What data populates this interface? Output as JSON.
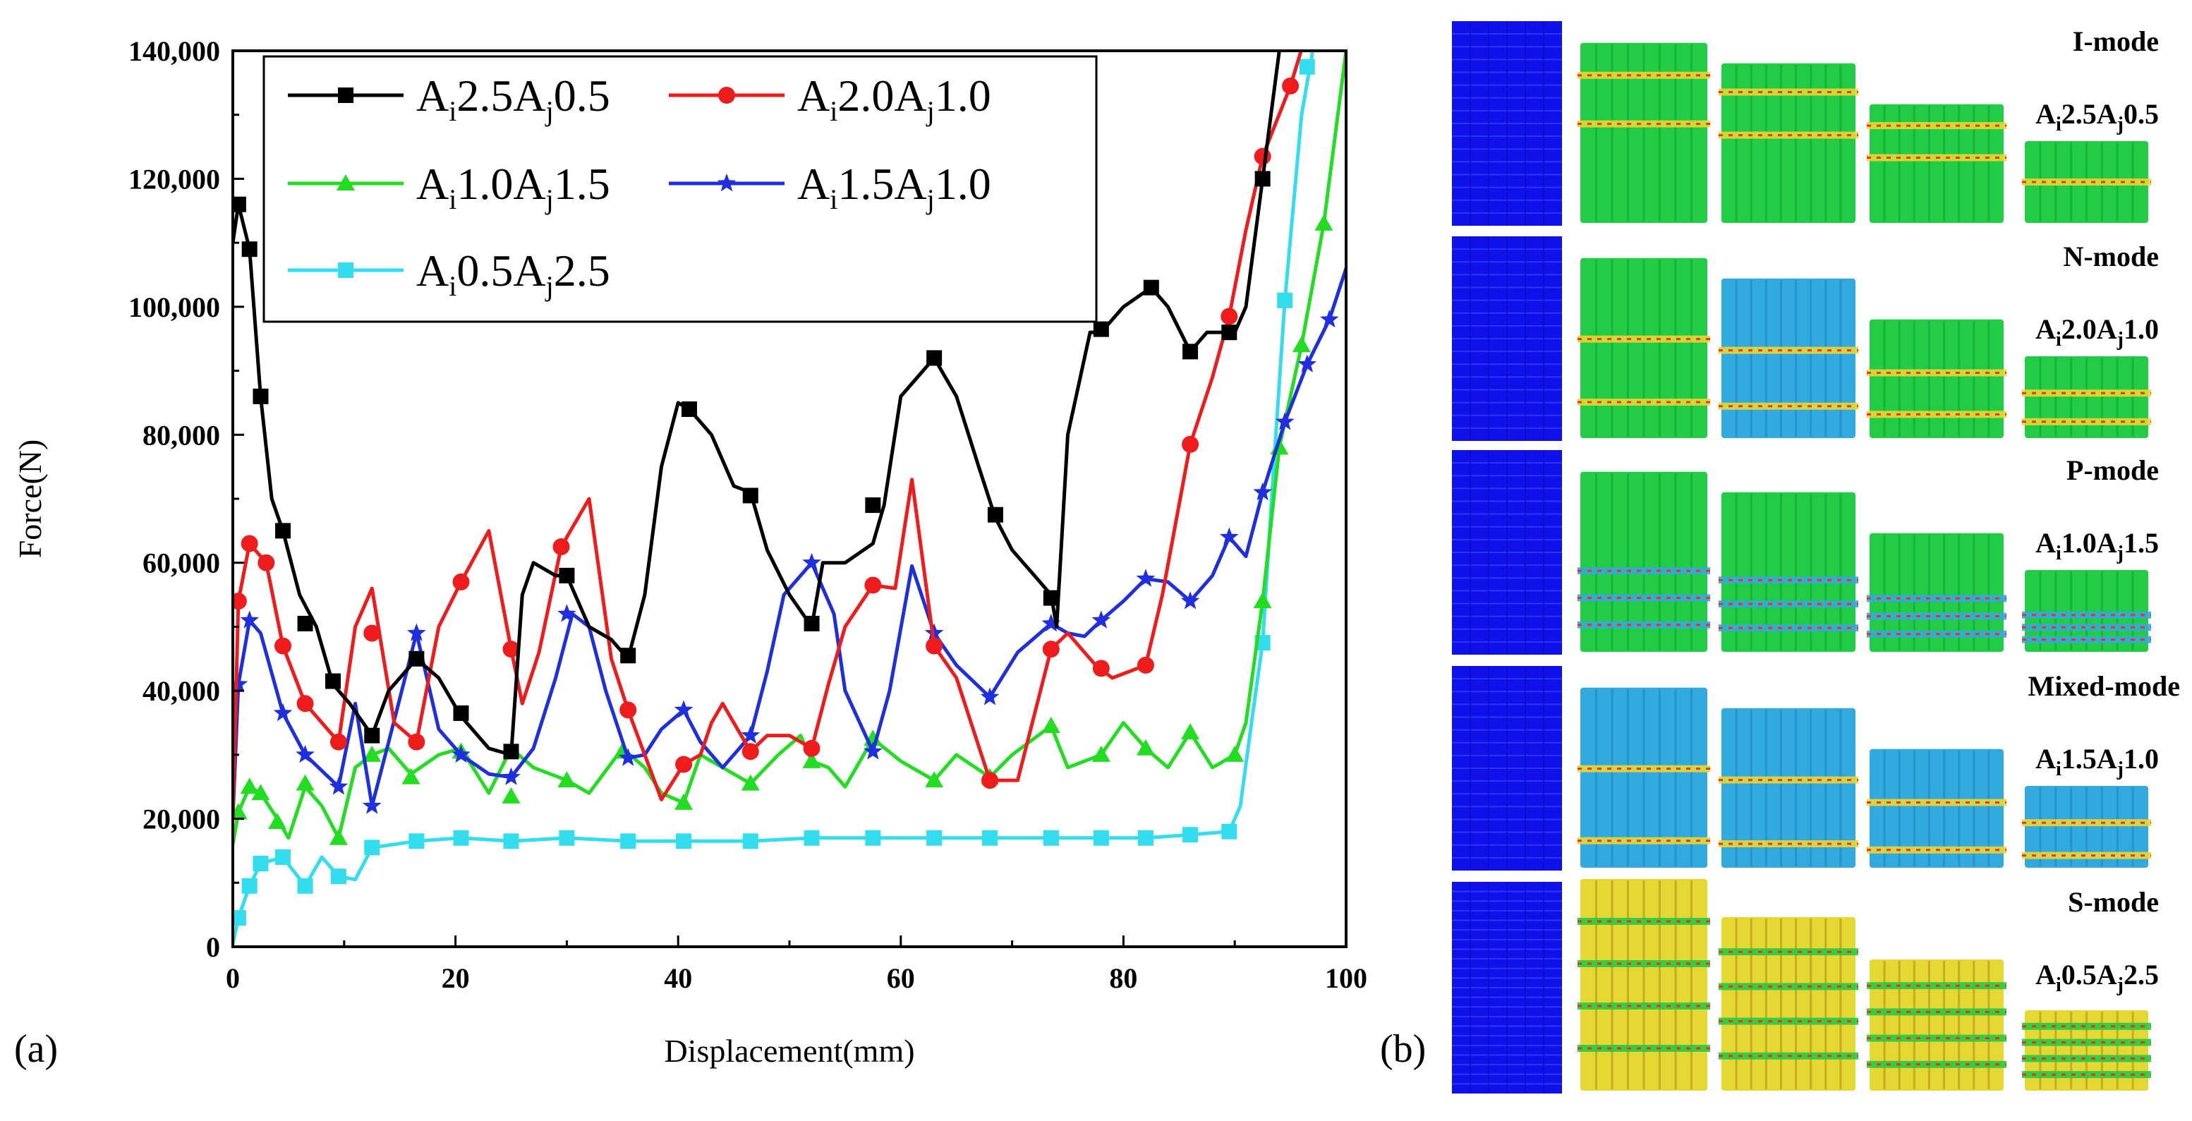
{
  "panel_a_label": "(a)",
  "panel_b_label": "(b)",
  "chart_data": {
    "type": "line",
    "xlabel": "Displacement(mm)",
    "ylabel": "Force(N)",
    "xlim": [
      0,
      100
    ],
    "ylim": [
      0,
      140000
    ],
    "x_ticks": [
      "0",
      "20",
      "40",
      "60",
      "80",
      "100"
    ],
    "y_ticks": [
      "0",
      "20,000",
      "40,000",
      "60,000",
      "80,000",
      "100,000",
      "120,000",
      "140,000"
    ],
    "grid": false,
    "legend_position": "top-left",
    "series": [
      {
        "name": "Ai2.5Aj0.5",
        "name_main": "A",
        "name_sub1": "i",
        "name_mid": "2.5A",
        "name_sub2": "j",
        "name_end": "0.5",
        "color": "#000000",
        "marker": "square",
        "x": [
          0,
          0.5,
          1.5,
          2.5,
          3.5,
          4.5,
          6,
          7.5,
          9,
          10.5,
          12.5,
          14,
          16.5,
          18.5,
          20.5,
          23,
          25,
          26,
          27,
          29,
          30,
          32,
          34,
          35.5,
          37,
          38.5,
          40,
          41,
          43,
          45,
          46.5,
          48,
          50,
          52,
          53,
          55,
          57.5,
          58.5,
          60,
          61,
          63,
          65,
          67,
          68.5,
          70,
          72,
          73.5,
          74,
          75,
          77,
          78,
          80,
          82.5,
          84,
          86,
          87.5,
          90,
          91,
          92.5,
          94,
          96
        ],
        "y": [
          110000,
          116000,
          109000,
          86000,
          70000,
          65000,
          55000,
          50000,
          41000,
          38000,
          33000,
          40000,
          45000,
          42000,
          36000,
          31000,
          30000,
          55000,
          60000,
          58000,
          58000,
          50000,
          48000,
          45000,
          55000,
          75000,
          85000,
          84000,
          80000,
          72000,
          71000,
          62000,
          55000,
          50000,
          60000,
          60000,
          63000,
          69000,
          86000,
          88000,
          92000,
          86000,
          75000,
          67000,
          62000,
          58000,
          55000,
          50000,
          80000,
          96000,
          96000,
          100000,
          103000,
          100000,
          93000,
          96000,
          96000,
          100000,
          120000,
          140000,
          146000
        ],
        "markers_x": [
          0.5,
          1.5,
          2.5,
          4.5,
          6.5,
          9,
          12.5,
          16.5,
          20.5,
          25,
          30,
          35.5,
          41,
          46.5,
          52,
          57.5,
          63,
          68.5,
          73.5,
          78,
          82.5,
          86,
          89.5,
          92.5
        ],
        "markers_y": [
          116000,
          109000,
          86000,
          65000,
          50500,
          41500,
          33000,
          45000,
          36500,
          30500,
          58000,
          45500,
          84000,
          70500,
          50500,
          69000,
          92000,
          67500,
          54500,
          96500,
          103000,
          93000,
          96000,
          120000
        ]
      },
      {
        "name": "Ai2.0Aj1.0",
        "name_main": "A",
        "name_sub1": "i",
        "name_mid": "2.0A",
        "name_sub2": "j",
        "name_end": "1.0",
        "color": "#ee1c1c",
        "marker": "circle",
        "x": [
          0,
          0.5,
          1.5,
          3,
          4.5,
          6.5,
          9.5,
          11,
          12.5,
          14.5,
          16.5,
          18.5,
          20.5,
          23,
          25,
          26,
          27.5,
          29.5,
          32,
          34,
          35.5,
          37,
          38.5,
          40.5,
          42,
          43,
          44,
          46.5,
          48,
          50,
          52,
          53.5,
          55,
          57.5,
          59.5,
          61,
          63,
          65,
          68,
          70.5,
          73.5,
          75,
          77.5,
          79,
          82,
          83.5,
          86,
          88,
          89.5,
          91,
          92.5,
          95,
          97
        ],
        "y": [
          20000,
          54000,
          63000,
          60000,
          47000,
          38000,
          32000,
          50000,
          56000,
          35000,
          32000,
          50000,
          57000,
          65000,
          46500,
          38000,
          46000,
          62500,
          70000,
          45000,
          37000,
          30000,
          23000,
          28500,
          30000,
          35000,
          38000,
          30500,
          33000,
          33000,
          31000,
          41000,
          50000,
          56500,
          56000,
          73000,
          47000,
          42000,
          26000,
          26000,
          46500,
          49000,
          44000,
          42000,
          44000,
          55000,
          78500,
          89000,
          98500,
          112000,
          123500,
          134500,
          146000
        ],
        "markers_x": [
          0.5,
          1.5,
          3,
          4.5,
          6.5,
          9.5,
          12.5,
          16.5,
          20.5,
          25,
          29.5,
          35.5,
          40.5,
          46.5,
          52,
          57.5,
          63,
          68,
          73.5,
          78,
          82,
          86,
          89.5,
          92.5,
          95
        ],
        "markers_y": [
          54000,
          63000,
          60000,
          47000,
          38000,
          32000,
          49000,
          32000,
          57000,
          46500,
          62500,
          37000,
          28500,
          30500,
          31000,
          56500,
          47000,
          26000,
          46500,
          43500,
          44000,
          78500,
          98500,
          123500,
          134500
        ]
      },
      {
        "name": "Ai1.0Aj1.5",
        "name_main": "A",
        "name_sub1": "i",
        "name_mid": "1.0A",
        "name_sub2": "j",
        "name_end": "1.5",
        "color": "#22dd22",
        "marker": "triangle",
        "x": [
          0,
          0.5,
          1.5,
          2.5,
          4,
          5,
          6.5,
          8,
          9.5,
          11,
          12.5,
          14,
          16,
          18.5,
          20.5,
          23,
          25,
          27,
          30,
          32,
          35,
          37,
          38.5,
          40.5,
          42,
          44,
          46.5,
          49,
          51,
          52,
          53.5,
          55,
          57.5,
          60,
          63,
          65,
          68,
          70,
          73.5,
          75,
          78,
          80,
          82,
          84,
          86,
          88,
          90,
          91,
          92.5,
          94,
          96,
          98,
          100
        ],
        "y": [
          16000,
          21000,
          25000,
          24000,
          20000,
          17000,
          25000,
          22000,
          17000,
          28000,
          30000,
          31000,
          27000,
          30000,
          31000,
          24000,
          31000,
          28000,
          26000,
          24000,
          31000,
          28000,
          24000,
          22500,
          30000,
          28000,
          25500,
          30000,
          33000,
          29000,
          28000,
          25000,
          32500,
          29000,
          26000,
          30000,
          26500,
          30000,
          34500,
          28000,
          30000,
          35000,
          31000,
          28000,
          33500,
          28000,
          30000,
          35000,
          54000,
          78000,
          94000,
          113000,
          140000
        ],
        "markers_x": [
          0.5,
          1.5,
          2.5,
          4,
          6.5,
          9.5,
          12.5,
          16,
          20.5,
          25,
          30,
          35,
          40.5,
          46.5,
          52,
          57.5,
          63,
          68,
          73.5,
          78,
          82,
          86,
          90,
          92.5,
          94,
          96,
          98
        ],
        "markers_y": [
          21000,
          25000,
          24000,
          19500,
          25500,
          17000,
          30000,
          26500,
          30500,
          23500,
          26000,
          30500,
          22500,
          25500,
          29000,
          32500,
          26000,
          26500,
          34500,
          30000,
          31000,
          33500,
          30000,
          54000,
          78000,
          94000,
          113000
        ]
      },
      {
        "name": "Ai1.5Aj1.0",
        "name_main": "A",
        "name_sub1": "i",
        "name_mid": "1.5A",
        "name_sub2": "j",
        "name_end": "1.0",
        "color": "#1f2fdd",
        "marker": "star",
        "x": [
          0,
          0.5,
          1.5,
          2.5,
          4.5,
          6.5,
          9.5,
          11,
          12.5,
          14,
          16.5,
          18.5,
          20.5,
          23,
          25,
          27,
          29,
          30.5,
          32,
          33.5,
          35.5,
          37,
          38.5,
          40.5,
          42,
          44,
          46.5,
          48,
          49.5,
          52,
          54,
          55,
          57.5,
          59,
          61,
          63,
          65,
          68,
          70.5,
          73.5,
          75,
          76.5,
          78,
          80,
          82,
          84,
          86,
          88,
          89.5,
          91,
          92.5,
          94.5,
          96.5,
          98.5,
          100
        ],
        "y": [
          20000,
          41000,
          51000,
          49000,
          36500,
          30000,
          25000,
          38000,
          22000,
          32000,
          49000,
          34000,
          30000,
          27000,
          26500,
          31000,
          42000,
          52000,
          50000,
          40000,
          29500,
          30000,
          34000,
          37000,
          32000,
          28000,
          33000,
          43000,
          55000,
          60000,
          52000,
          40000,
          30500,
          40000,
          59500,
          49000,
          44000,
          39000,
          46000,
          50500,
          49000,
          48500,
          51000,
          54000,
          57500,
          57000,
          54000,
          58000,
          64000,
          61000,
          71000,
          82000,
          91000,
          98000,
          106000
        ],
        "markers_x": [
          0.5,
          1.5,
          4.5,
          6.5,
          9.5,
          12.5,
          16.5,
          20.5,
          25,
          30,
          35.5,
          40.5,
          46.5,
          52,
          57.5,
          63,
          68,
          73.5,
          78,
          82,
          86,
          89.5,
          92.5,
          94.5,
          96.5,
          98.5
        ],
        "markers_y": [
          41000,
          51000,
          36500,
          30000,
          25000,
          22000,
          49000,
          30000,
          26500,
          52000,
          29500,
          37000,
          33000,
          60000,
          30500,
          49000,
          39000,
          50500,
          51000,
          57500,
          54000,
          64000,
          71000,
          82000,
          91000,
          98000
        ]
      },
      {
        "name": "Ai0.5Aj2.5",
        "name_main": "A",
        "name_sub1": "i",
        "name_mid": "0.5A",
        "name_sub2": "j",
        "name_end": "2.5",
        "color": "#33ddee",
        "marker": "square",
        "x": [
          0,
          0.5,
          1.5,
          2.5,
          4.5,
          6.5,
          8,
          9.5,
          11,
          12.5,
          16.5,
          20.5,
          25,
          30,
          35.5,
          40.5,
          46.5,
          52,
          57.5,
          63,
          68,
          73.5,
          78,
          82,
          86,
          89.5,
          90.5,
          91.5,
          92.5,
          93.5,
          94.5,
          96,
          97
        ],
        "y": [
          500,
          4500,
          9500,
          13000,
          14000,
          9500,
          14000,
          11000,
          10500,
          15500,
          16500,
          17000,
          16500,
          17000,
          16500,
          16500,
          16500,
          17000,
          17000,
          17000,
          17000,
          17000,
          17000,
          17000,
          17500,
          18000,
          22000,
          35000,
          47500,
          75000,
          101000,
          130000,
          140000
        ],
        "markers_x": [
          0.5,
          1.5,
          2.5,
          4.5,
          6.5,
          9.5,
          12.5,
          16.5,
          20.5,
          25,
          30,
          35.5,
          40.5,
          46.5,
          52,
          57.5,
          63,
          68,
          73.5,
          78,
          82,
          86,
          89.5,
          92.5,
          94.5,
          96.5
        ],
        "markers_y": [
          4500,
          9500,
          13000,
          14000,
          9500,
          11000,
          15500,
          16500,
          17000,
          16500,
          17000,
          16500,
          16500,
          16500,
          17000,
          17000,
          17000,
          17000,
          17000,
          17000,
          17000,
          17500,
          18000,
          47500,
          101000,
          137500
        ]
      }
    ]
  },
  "fea_panel": {
    "modes": [
      {
        "title": "I-mode",
        "sub_pre": "A",
        "sub_i": "i",
        "sub_mid": "2.5A",
        "sub_j": "j",
        "sub_end": "0.5"
      },
      {
        "title": "N-mode",
        "sub_pre": "A",
        "sub_i": "i",
        "sub_mid": "2.0A",
        "sub_j": "j",
        "sub_end": "1.0"
      },
      {
        "title": "P-mode",
        "sub_pre": "A",
        "sub_i": "i",
        "sub_mid": "1.0A",
        "sub_j": "j",
        "sub_end": "1.5"
      },
      {
        "title": "Mixed-mode",
        "sub_pre": "A",
        "sub_i": "i",
        "sub_mid": "1.5A",
        "sub_j": "j",
        "sub_end": "1.0"
      },
      {
        "title": "S-mode",
        "sub_pre": "A",
        "sub_i": "i",
        "sub_mid": "0.5A",
        "sub_j": "j",
        "sub_end": "2.5"
      }
    ],
    "colors": {
      "undeformed": "#1010e8",
      "stress_low": "#22cc44",
      "stress_mid": "#e6d833",
      "stress_high": "#ee3322",
      "stress_cool": "#33aadd"
    }
  }
}
